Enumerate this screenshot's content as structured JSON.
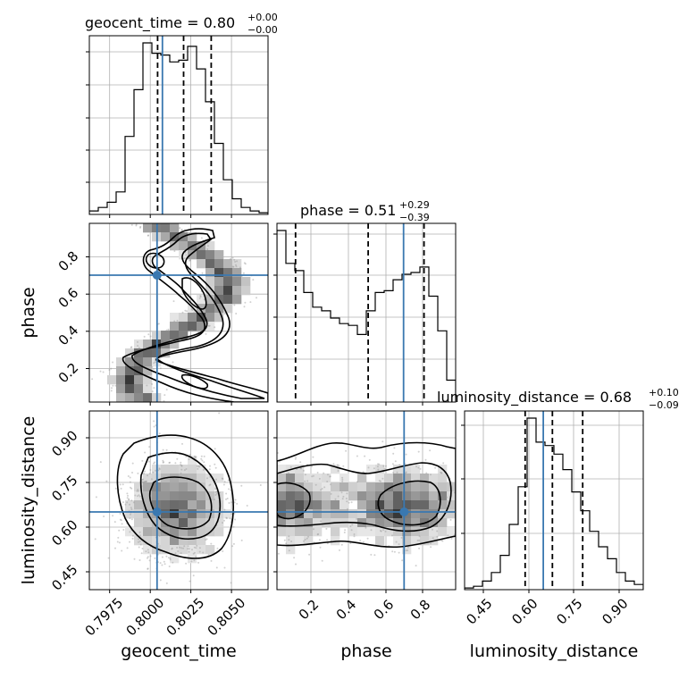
{
  "colors": {
    "truth": "#3a78b0",
    "hist": "#000000",
    "scatter": "#9a9a9a"
  },
  "chart_data": {
    "type": "corner",
    "parameters": [
      "geocent_time",
      "phase",
      "luminosity_distance"
    ],
    "truths": {
      "geocent_time": 0.7995,
      "phase": 0.7,
      "luminosity_distance": 0.65
    },
    "axes": {
      "geocent_time": {
        "range": [
          0.795,
          0.806
        ],
        "ticks": [
          0.7975,
          0.8,
          0.8025,
          0.805
        ],
        "tick_labels": [
          "0.7975",
          "0.8000",
          "0.8025",
          "0.8050"
        ]
      },
      "phase": {
        "range": [
          0.02,
          0.98
        ],
        "ticks": [
          0.2,
          0.4,
          0.6,
          0.8
        ],
        "tick_labels": [
          "0.2",
          "0.4",
          "0.6",
          "0.8"
        ]
      },
      "luminosity_distance": {
        "range": [
          0.39,
          0.98
        ],
        "ticks": [
          0.45,
          0.6,
          0.75,
          0.9
        ],
        "tick_labels": [
          "0.45",
          "0.60",
          "0.75",
          "0.90"
        ]
      }
    },
    "marginals": [
      {
        "param": "geocent_time",
        "title": {
          "prefix": "geocent_time = 0.80",
          "upper": "+0.00",
          "lower": "−0.00"
        },
        "quantiles": [
          0.7992,
          0.8008,
          0.8025
        ],
        "bin_edges": [
          0.795,
          0.79555,
          0.7961,
          0.79665,
          0.7972,
          0.79775,
          0.7983,
          0.79885,
          0.7994,
          0.79995,
          0.8005,
          0.80105,
          0.8016,
          0.80215,
          0.8027,
          0.80325,
          0.8038,
          0.80435,
          0.8049,
          0.80545,
          0.806
        ],
        "counts": [
          2,
          4,
          7,
          13,
          45,
          72,
          99,
          93,
          92,
          88,
          89,
          97,
          84,
          65,
          41,
          20,
          9,
          4,
          2,
          1
        ]
      },
      {
        "param": "phase",
        "title": {
          "prefix": "phase = 0.51",
          "upper": "+0.29",
          "lower": "−0.39"
        },
        "quantiles": [
          0.12,
          0.51,
          0.81
        ],
        "bin_edges": [
          0.02,
          0.068,
          0.116,
          0.164,
          0.212,
          0.26,
          0.308,
          0.356,
          0.404,
          0.452,
          0.5,
          0.548,
          0.596,
          0.644,
          0.692,
          0.74,
          0.788,
          0.836,
          0.884,
          0.932,
          0.98
        ],
        "counts": [
          94,
          76,
          72,
          60,
          52,
          50,
          46,
          43,
          42,
          37,
          50,
          60,
          61,
          67,
          70,
          71,
          74,
          58,
          39,
          12
        ]
      },
      {
        "param": "luminosity_distance",
        "title": {
          "prefix": "luminosity_distance = 0.68",
          "upper": "+0.10",
          "lower": "−0.09"
        },
        "quantiles": [
          0.59,
          0.68,
          0.78
        ],
        "bin_edges": [
          0.39,
          0.4195,
          0.449,
          0.4785,
          0.508,
          0.5375,
          0.567,
          0.5965,
          0.626,
          0.6555,
          0.685,
          0.7145,
          0.744,
          0.7735,
          0.803,
          0.8325,
          0.862,
          0.8915,
          0.921,
          0.9505,
          0.98
        ],
        "counts": [
          1,
          2,
          5,
          10,
          20,
          38,
          60,
          100,
          86,
          84,
          79,
          70,
          57,
          46,
          34,
          25,
          18,
          10,
          5,
          3
        ]
      }
    ]
  }
}
